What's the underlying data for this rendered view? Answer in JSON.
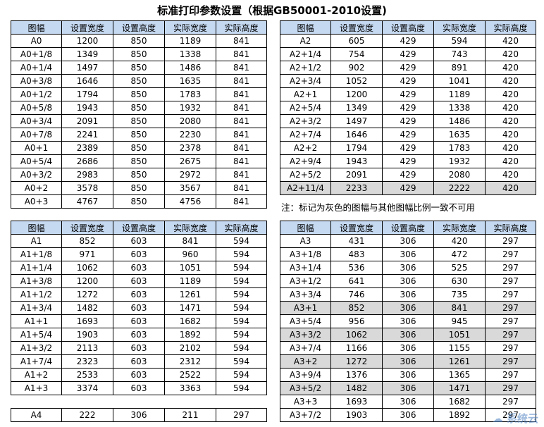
{
  "title": "标准打印参数设置（根据GB50001-2010设置)",
  "headers": [
    "图幅",
    "设置宽度",
    "设置高度",
    "实际宽度",
    "实际高度"
  ],
  "note": "注：标记为灰色的图幅与其他图幅比例一致不可用",
  "watermark": "系统云",
  "tables": {
    "a0": [
      [
        "A0",
        "1200",
        "850",
        "1189",
        "841"
      ],
      [
        "A0+1/8",
        "1349",
        "850",
        "1338",
        "841"
      ],
      [
        "A0+1/4",
        "1497",
        "850",
        "1486",
        "841"
      ],
      [
        "A0+3/8",
        "1646",
        "850",
        "1635",
        "841"
      ],
      [
        "A0+1/2",
        "1794",
        "850",
        "1783",
        "841"
      ],
      [
        "A0+5/8",
        "1943",
        "850",
        "1932",
        "841"
      ],
      [
        "A0+3/4",
        "2091",
        "850",
        "2080",
        "841"
      ],
      [
        "A0+7/8",
        "2241",
        "850",
        "2230",
        "841"
      ],
      [
        "A0+1",
        "2389",
        "850",
        "2378",
        "841"
      ],
      [
        "A0+5/4",
        "2686",
        "850",
        "2675",
        "841"
      ],
      [
        "A0+3/2",
        "2983",
        "850",
        "2972",
        "841"
      ],
      [
        "A0+2",
        "3578",
        "850",
        "3567",
        "841"
      ],
      [
        "A0+3",
        "4767",
        "850",
        "4756",
        "841"
      ]
    ],
    "a2": [
      [
        "A2",
        "605",
        "429",
        "594",
        "420"
      ],
      [
        "A2+1/4",
        "754",
        "429",
        "743",
        "420"
      ],
      [
        "A2+1/2",
        "902",
        "429",
        "891",
        "420"
      ],
      [
        "A2+3/4",
        "1052",
        "429",
        "1041",
        "420"
      ],
      [
        "A2+1",
        "1200",
        "429",
        "1189",
        "420"
      ],
      [
        "A2+5/4",
        "1349",
        "429",
        "1338",
        "420"
      ],
      [
        "A2+3/2",
        "1497",
        "429",
        "1486",
        "420"
      ],
      [
        "A2+7/4",
        "1646",
        "429",
        "1635",
        "420"
      ],
      [
        "A2+2",
        "1794",
        "429",
        "1783",
        "420"
      ],
      [
        "A2+9/4",
        "1943",
        "429",
        "1932",
        "420"
      ],
      [
        "A2+5/2",
        "2091",
        "429",
        "2080",
        "420"
      ],
      [
        "A2+11/4",
        "2233",
        "429",
        "2222",
        "420"
      ]
    ],
    "a2_gray": [
      11
    ],
    "a1": [
      [
        "A1",
        "852",
        "603",
        "841",
        "594"
      ],
      [
        "A1+1/8",
        "971",
        "603",
        "960",
        "594"
      ],
      [
        "A1+1/4",
        "1062",
        "603",
        "1051",
        "594"
      ],
      [
        "A1+3/8",
        "1200",
        "603",
        "1189",
        "594"
      ],
      [
        "A1+1/2",
        "1272",
        "603",
        "1261",
        "594"
      ],
      [
        "A1+3/4",
        "1482",
        "603",
        "1471",
        "594"
      ],
      [
        "A1+1",
        "1693",
        "603",
        "1682",
        "594"
      ],
      [
        "A1+5/4",
        "1903",
        "603",
        "1892",
        "594"
      ],
      [
        "A1+3/2",
        "2113",
        "603",
        "2102",
        "594"
      ],
      [
        "A1+7/4",
        "2323",
        "603",
        "2312",
        "594"
      ],
      [
        "A1+2",
        "2533",
        "603",
        "2522",
        "594"
      ],
      [
        "A1+3",
        "3374",
        "603",
        "3363",
        "594"
      ]
    ],
    "a4": [
      [
        "A4",
        "222",
        "306",
        "211",
        "297"
      ]
    ],
    "a3": [
      [
        "A3",
        "431",
        "306",
        "420",
        "297"
      ],
      [
        "A3+1/8",
        "483",
        "306",
        "472",
        "297"
      ],
      [
        "A3+1/4",
        "536",
        "306",
        "525",
        "297"
      ],
      [
        "A3+1/2",
        "641",
        "306",
        "630",
        "297"
      ],
      [
        "A3+3/4",
        "746",
        "306",
        "735",
        "297"
      ],
      [
        "A3+1",
        "852",
        "306",
        "841",
        "297"
      ],
      [
        "A3+5/4",
        "956",
        "306",
        "945",
        "297"
      ],
      [
        "A3+3/2",
        "1062",
        "306",
        "1051",
        "297"
      ],
      [
        "A3+7/4",
        "1166",
        "306",
        "1155",
        "297"
      ],
      [
        "A3+2",
        "1272",
        "306",
        "1261",
        "297"
      ],
      [
        "A3+9/4",
        "1376",
        "306",
        "1365",
        "297"
      ],
      [
        "A3+5/2",
        "1482",
        "306",
        "1471",
        "297"
      ],
      [
        "A3+3",
        "1693",
        "306",
        "1682",
        "297"
      ],
      [
        "A3+7/2",
        "1903",
        "306",
        "1892",
        "297"
      ]
    ],
    "a3_gray": [
      5,
      7,
      9,
      11
    ]
  }
}
